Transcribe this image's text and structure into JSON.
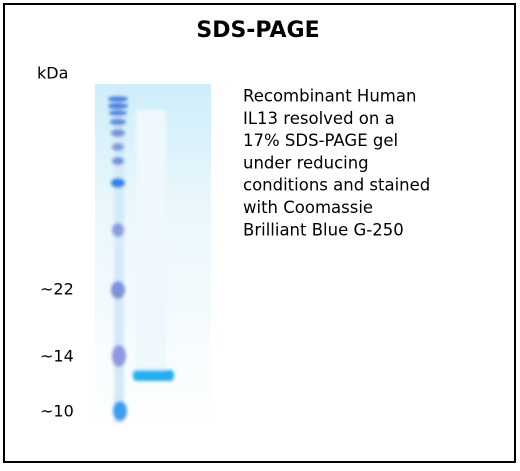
{
  "header": {
    "title": "SDS-PAGE"
  },
  "gel": {
    "unit_label": "kDa",
    "markers": [
      "~22",
      "~14",
      "~10"
    ]
  },
  "description": {
    "lines": [
      "Recombinant Human",
      "IL13 resolved  on a",
      "17% SDS-PAGE gel",
      "under reducing",
      "conditions and stained",
      "with Coomassie",
      "Brilliant Blue G-250"
    ]
  }
}
